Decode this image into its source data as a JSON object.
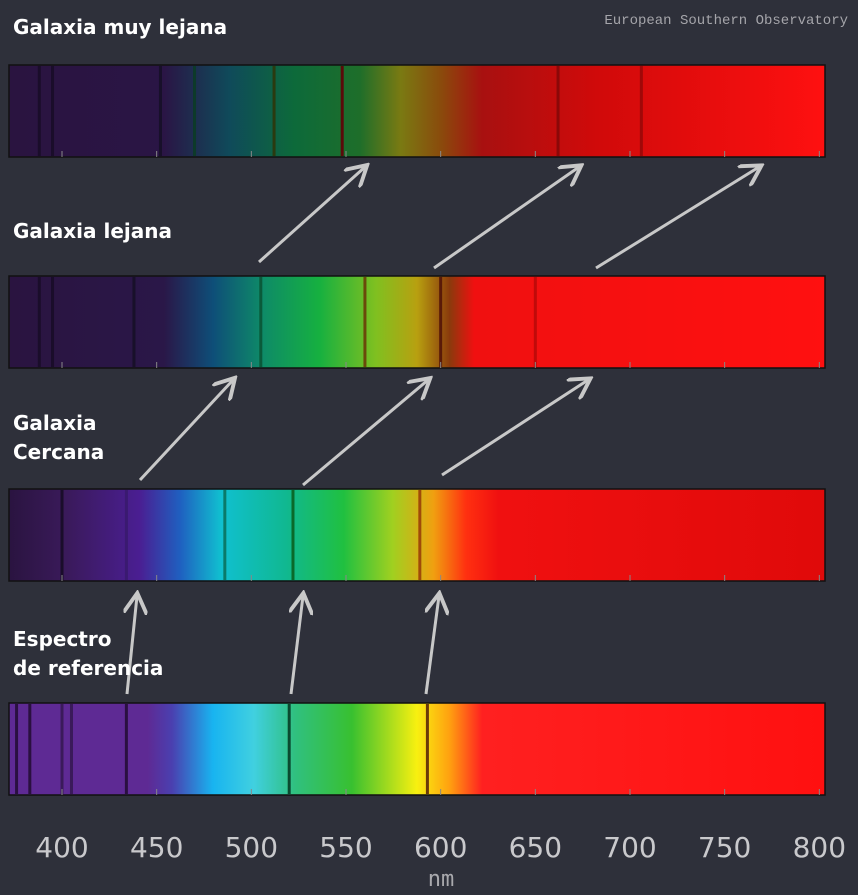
{
  "credit": "European Southern Observatory",
  "spectra": [
    {
      "label": [
        "Galaxia muy lejana"
      ]
    },
    {
      "label": [
        "Galaxia lejana"
      ]
    },
    {
      "label": [
        "Galaxia",
        "Cercana"
      ]
    },
    {
      "label": [
        "Espectro",
        "de referencia"
      ]
    }
  ],
  "axis": {
    "label": "nm",
    "xlim": [
      372,
      803
    ],
    "xticks": [
      400,
      450,
      500,
      550,
      600,
      650,
      700,
      750,
      800
    ]
  }
}
